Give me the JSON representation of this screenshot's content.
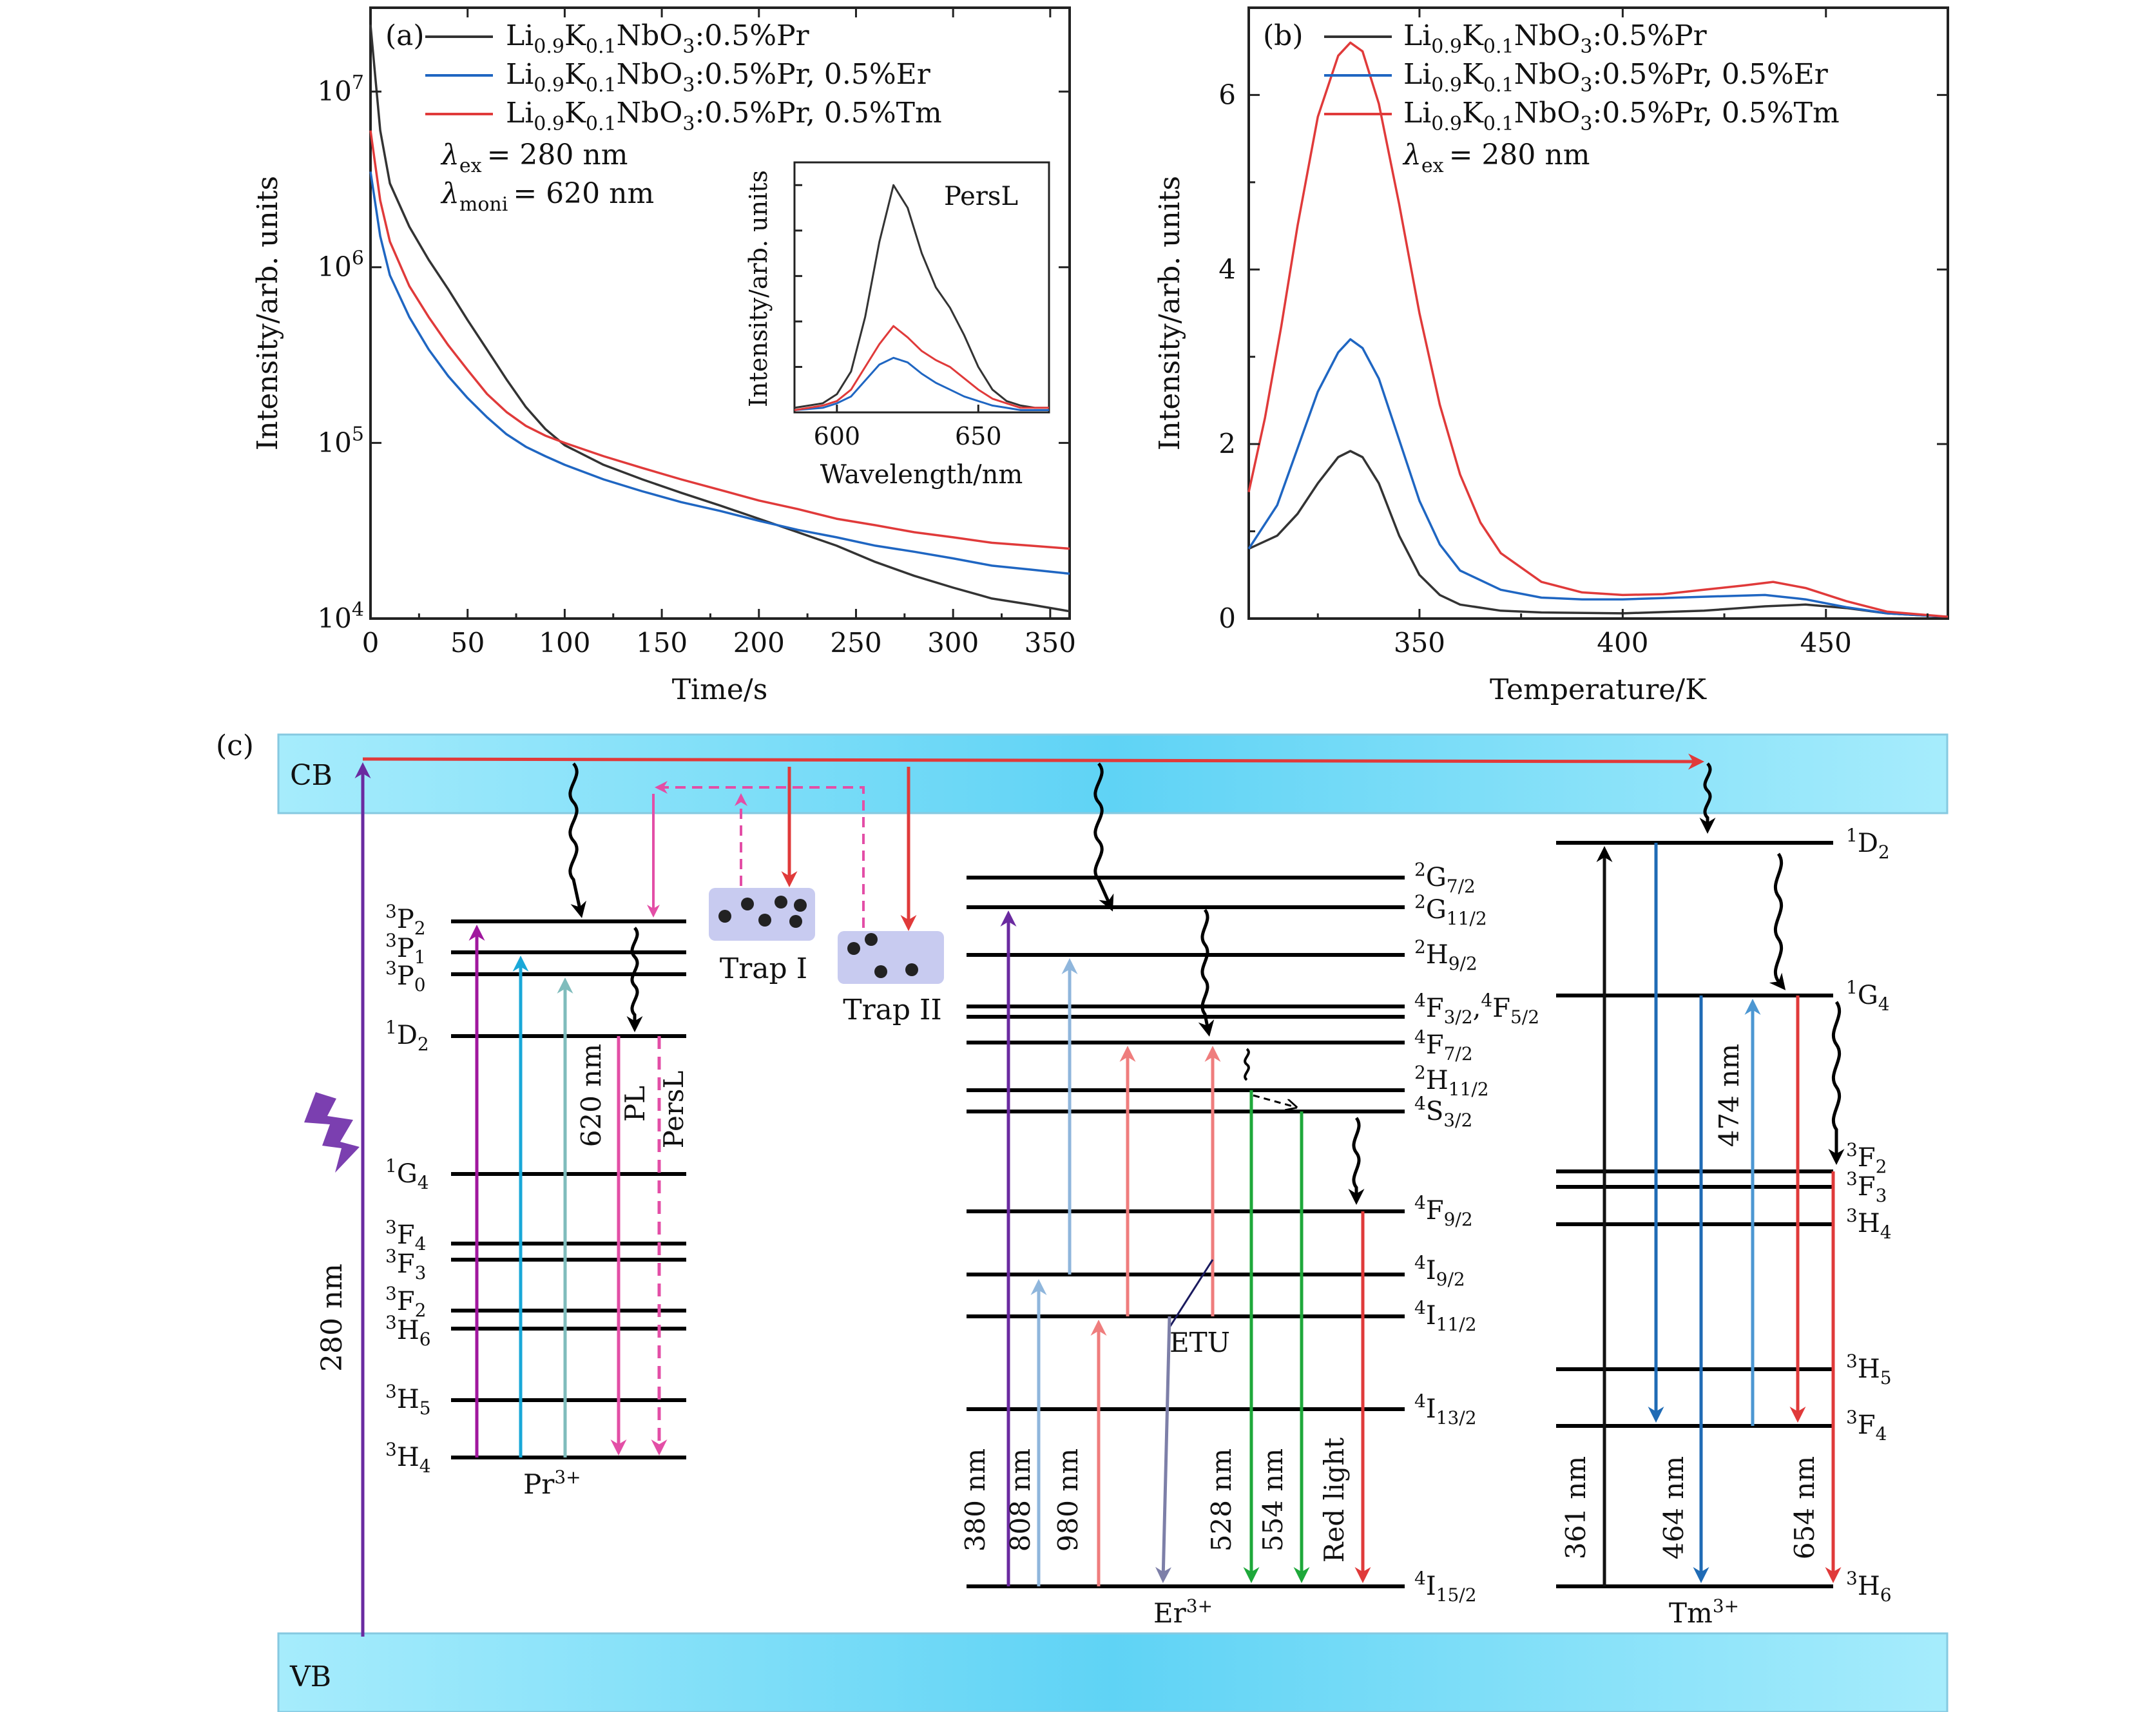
{
  "colors": {
    "black": "#333333",
    "blue": "#1f66c2",
    "red": "#e03a3a",
    "band": "#5fd3f5",
    "band_light": "#a6ecfc",
    "purple": "#6a2aa0",
    "magenta": "#a0179e",
    "cyan": "#19a8d8",
    "teal": "#7fbcbc",
    "pink": "#e34ea6",
    "green": "#1ea83a",
    "lightblue": "#8fb6dc",
    "salmon": "#ef7d7d",
    "trap": "#c8cbf0",
    "navy": "#1a1a5e",
    "grayblue": "#7d7fa8",
    "tm_blue": "#1f6bb5",
    "tm_lightblue": "#4c97d2"
  },
  "chart_data": [
    {
      "id": "a",
      "panel_label": "(a)",
      "type": "line",
      "y_scale": "log",
      "xlabel": "Time/s",
      "ylabel": "Intensity/arb. units",
      "xlim": [
        0,
        360
      ],
      "ylim": [
        10000,
        30000000
      ],
      "x_ticks": [
        "0",
        "50",
        "100",
        "150",
        "200",
        "250",
        "300",
        "350"
      ],
      "y_ticks": [
        {
          "base": "10",
          "exp": "4"
        },
        {
          "base": "10",
          "exp": "5"
        },
        {
          "base": "10",
          "exp": "6"
        },
        {
          "base": "10",
          "exp": "7"
        }
      ],
      "legend": [
        {
          "name_main": "Li",
          "sub1": "0.9",
          "k": "K",
          "sub2": "0.1",
          "nbo": "NbO",
          "sub3": "3",
          "rest": ":0.5%Pr"
        },
        {
          "name_main": "Li",
          "sub1": "0.9",
          "k": "K",
          "sub2": "0.1",
          "nbo": "NbO",
          "sub3": "3",
          "rest": ":0.5%Pr, 0.5%Er"
        },
        {
          "name_main": "Li",
          "sub1": "0.9",
          "k": "K",
          "sub2": "0.1",
          "nbo": "NbO",
          "sub3": "3",
          "rest": ":0.5%Pr, 0.5%Tm"
        }
      ],
      "annotations": {
        "lambda_ex_sub": "ex",
        "lambda_ex_value": "= 280 nm",
        "lambda_moni_sub": "moni",
        "lambda_moni_value": "= 620 nm"
      },
      "series": [
        {
          "name": "Li0.9K0.1NbO3:0.5%Pr",
          "color_key": "black",
          "x": [
            0,
            5,
            10,
            20,
            30,
            40,
            50,
            60,
            70,
            80,
            90,
            100,
            120,
            140,
            160,
            180,
            200,
            220,
            240,
            260,
            280,
            300,
            320,
            340,
            360
          ],
          "y": [
            24000000,
            6000000,
            3000000,
            1700000,
            1100000,
            750000,
            500000,
            340000,
            230000,
            160000,
            120000,
            97000,
            75000,
            62000,
            52000,
            44000,
            37000,
            31000,
            26000,
            21000,
            17500,
            15000,
            13000,
            12000,
            11000
          ]
        },
        {
          "name": "Li0.9K0.1NbO3:0.5%Pr, 0.5%Er",
          "color_key": "blue",
          "x": [
            0,
            5,
            10,
            20,
            30,
            40,
            50,
            60,
            70,
            80,
            90,
            100,
            120,
            140,
            160,
            180,
            200,
            220,
            240,
            260,
            280,
            300,
            320,
            340,
            360
          ],
          "y": [
            3500000,
            1500000,
            900000,
            520000,
            340000,
            240000,
            180000,
            140000,
            112000,
            95000,
            84000,
            75000,
            62000,
            53000,
            46000,
            41000,
            36000,
            32000,
            29000,
            26000,
            24000,
            22000,
            20000,
            19000,
            18000
          ]
        },
        {
          "name": "Li0.9K0.1NbO3:0.5%Pr, 0.5%Tm",
          "color_key": "red",
          "x": [
            0,
            5,
            10,
            20,
            30,
            40,
            50,
            60,
            70,
            80,
            90,
            100,
            120,
            140,
            160,
            180,
            200,
            220,
            240,
            260,
            280,
            300,
            320,
            340,
            360
          ],
          "y": [
            6000000,
            2400000,
            1400000,
            780000,
            520000,
            360000,
            260000,
            190000,
            150000,
            125000,
            110000,
            100000,
            84000,
            72000,
            62000,
            54000,
            47000,
            42000,
            37000,
            34000,
            31000,
            29000,
            27000,
            26000,
            25000
          ]
        }
      ]
    },
    {
      "id": "a-inset",
      "type": "line",
      "title": "PersL",
      "xlabel": "Wavelength/nm",
      "ylabel": "Intensity/arb. units",
      "xlim": [
        585,
        675
      ],
      "ylim": [
        0,
        1.1
      ],
      "x_ticks": [
        "600",
        "650"
      ],
      "series": [
        {
          "name": "Li0.9K0.1NbO3:0.5%Pr",
          "color_key": "black",
          "x": [
            585,
            595,
            600,
            605,
            610,
            615,
            620,
            625,
            630,
            635,
            640,
            645,
            650,
            655,
            660,
            665,
            670,
            675
          ],
          "y": [
            0.02,
            0.04,
            0.08,
            0.18,
            0.42,
            0.75,
            1.0,
            0.9,
            0.7,
            0.55,
            0.46,
            0.34,
            0.2,
            0.1,
            0.05,
            0.03,
            0.02,
            0.02
          ]
        },
        {
          "name": "Li0.9K0.1NbO3:0.5%Pr, 0.5%Er",
          "color_key": "blue",
          "x": [
            585,
            595,
            600,
            605,
            610,
            615,
            620,
            625,
            630,
            635,
            640,
            645,
            650,
            655,
            660,
            665,
            670,
            675
          ],
          "y": [
            0.01,
            0.02,
            0.04,
            0.07,
            0.14,
            0.21,
            0.24,
            0.22,
            0.17,
            0.13,
            0.1,
            0.07,
            0.05,
            0.03,
            0.02,
            0.01,
            0.01,
            0.01
          ]
        },
        {
          "name": "Li0.9K0.1NbO3:0.5%Pr, 0.5%Tm",
          "color_key": "red",
          "x": [
            585,
            595,
            600,
            605,
            610,
            615,
            620,
            625,
            630,
            635,
            640,
            645,
            650,
            655,
            660,
            665,
            670,
            675
          ],
          "y": [
            0.01,
            0.03,
            0.05,
            0.1,
            0.2,
            0.3,
            0.38,
            0.33,
            0.27,
            0.23,
            0.2,
            0.15,
            0.1,
            0.06,
            0.04,
            0.02,
            0.02,
            0.02
          ]
        }
      ]
    },
    {
      "id": "b",
      "panel_label": "(b)",
      "type": "line",
      "xlabel": "Temperature/K",
      "ylabel": "Intensity/arb. units",
      "xlim": [
        308,
        480
      ],
      "ylim": [
        0,
        7
      ],
      "x_ticks": [
        "350",
        "400",
        "450"
      ],
      "y_ticks": [
        "0",
        "2",
        "4",
        "6"
      ],
      "legend": [
        {
          "name_main": "Li",
          "sub1": "0.9",
          "k": "K",
          "sub2": "0.1",
          "nbo": "NbO",
          "sub3": "3",
          "rest": ":0.5%Pr"
        },
        {
          "name_main": "Li",
          "sub1": "0.9",
          "k": "K",
          "sub2": "0.1",
          "nbo": "NbO",
          "sub3": "3",
          "rest": ":0.5%Pr, 0.5%Er"
        },
        {
          "name_main": "Li",
          "sub1": "0.9",
          "k": "K",
          "sub2": "0.1",
          "nbo": "NbO",
          "sub3": "3",
          "rest": ":0.5%Pr, 0.5%Tm"
        }
      ],
      "annotations": {
        "lambda_ex_sub": "ex",
        "lambda_ex_value": "= 280 nm"
      },
      "series": [
        {
          "name": "Li0.9K0.1NbO3:0.5%Pr",
          "color_key": "black",
          "x": [
            308,
            315,
            320,
            325,
            330,
            333,
            336,
            340,
            345,
            350,
            355,
            360,
            370,
            380,
            400,
            420,
            435,
            445,
            455,
            465,
            480
          ],
          "y": [
            0.8,
            0.95,
            1.2,
            1.55,
            1.85,
            1.92,
            1.85,
            1.55,
            0.95,
            0.5,
            0.27,
            0.16,
            0.09,
            0.07,
            0.06,
            0.09,
            0.14,
            0.16,
            0.12,
            0.06,
            0.02
          ]
        },
        {
          "name": "Li0.9K0.1NbO3:0.5%Pr, 0.5%Er",
          "color_key": "blue",
          "x": [
            308,
            315,
            320,
            325,
            330,
            333,
            336,
            340,
            345,
            350,
            355,
            360,
            370,
            380,
            390,
            400,
            420,
            435,
            445,
            455,
            465,
            480
          ],
          "y": [
            0.8,
            1.3,
            1.95,
            2.6,
            3.05,
            3.2,
            3.1,
            2.75,
            2.05,
            1.35,
            0.85,
            0.55,
            0.33,
            0.24,
            0.22,
            0.22,
            0.25,
            0.27,
            0.22,
            0.13,
            0.06,
            0.02
          ]
        },
        {
          "name": "Li0.9K0.1NbO3:0.5%Pr, 0.5%Tm",
          "color_key": "red",
          "x": [
            308,
            312,
            316,
            320,
            325,
            330,
            333,
            336,
            340,
            345,
            350,
            355,
            360,
            365,
            370,
            380,
            390,
            400,
            410,
            420,
            430,
            437,
            445,
            455,
            465,
            480
          ],
          "y": [
            1.45,
            2.3,
            3.35,
            4.5,
            5.75,
            6.45,
            6.6,
            6.5,
            5.9,
            4.75,
            3.5,
            2.45,
            1.65,
            1.1,
            0.75,
            0.42,
            0.3,
            0.27,
            0.28,
            0.33,
            0.38,
            0.42,
            0.35,
            0.2,
            0.08,
            0.02
          ]
        }
      ]
    }
  ],
  "diagram": {
    "panel_label": "(c)",
    "cb_label": "CB",
    "vb_label": "VB",
    "excitation_label": "280 nm",
    "pr": {
      "ion_base": "Pr",
      "ion_sup": "3+",
      "levels": [
        {
          "sup": "3",
          "base": "P",
          "sub": "2"
        },
        {
          "sup": "3",
          "base": "P",
          "sub": "1"
        },
        {
          "sup": "3",
          "base": "P",
          "sub": "0"
        },
        {
          "sup": "1",
          "base": "D",
          "sub": "2"
        },
        {
          "sup": "1",
          "base": "G",
          "sub": "4"
        },
        {
          "sup": "3",
          "base": "F",
          "sub": "4"
        },
        {
          "sup": "3",
          "base": "F",
          "sub": "3"
        },
        {
          "sup": "3",
          "base": "F",
          "sub": "2"
        },
        {
          "sup": "3",
          "base": "H",
          "sub": "6"
        },
        {
          "sup": "3",
          "base": "H",
          "sub": "5"
        },
        {
          "sup": "3",
          "base": "H",
          "sub": "4"
        }
      ],
      "labels": {
        "nm620": "620 nm",
        "pl": "PL",
        "persl": "PersL"
      }
    },
    "traps": {
      "trap1": "Trap I",
      "trap2": "Trap II"
    },
    "er": {
      "ion_base": "Er",
      "ion_sup": "3+",
      "levels": [
        {
          "sup": "2",
          "base": "G",
          "sub": "7/2"
        },
        {
          "sup": "2",
          "base": "G",
          "sub": "11/2"
        },
        {
          "sup": "2",
          "base": "H",
          "sub": "9/2"
        },
        {
          "sup": "4",
          "base": "F",
          "sub": "3/2",
          "extra_sup": "4",
          "extra_base": "F",
          "extra_sub": "5/2"
        },
        {
          "sup": "4",
          "base": "F",
          "sub": "7/2"
        },
        {
          "sup": "2",
          "base": "H",
          "sub": "11/2"
        },
        {
          "sup": "4",
          "base": "S",
          "sub": "3/2"
        },
        {
          "sup": "4",
          "base": "F",
          "sub": "9/2"
        },
        {
          "sup": "4",
          "base": "I",
          "sub": "9/2"
        },
        {
          "sup": "4",
          "base": "I",
          "sub": "11/2"
        },
        {
          "sup": "4",
          "base": "I",
          "sub": "13/2"
        },
        {
          "sup": "4",
          "base": "I",
          "sub": "15/2"
        }
      ],
      "labels": {
        "nm380": "380 nm",
        "nm808": "808 nm",
        "nm980": "980 nm",
        "nm528": "528 nm",
        "nm554": "554 nm",
        "red": "Red light",
        "etu": "ETU"
      }
    },
    "tm": {
      "ion_base": "Tm",
      "ion_sup": "3+",
      "levels": [
        {
          "sup": "1",
          "base": "D",
          "sub": "2"
        },
        {
          "sup": "1",
          "base": "G",
          "sub": "4"
        },
        {
          "sup": "3",
          "base": "F",
          "sub": "2"
        },
        {
          "sup": "3",
          "base": "F",
          "sub": "3"
        },
        {
          "sup": "3",
          "base": "H",
          "sub": "4"
        },
        {
          "sup": "3",
          "base": "H",
          "sub": "5"
        },
        {
          "sup": "3",
          "base": "F",
          "sub": "4"
        },
        {
          "sup": "3",
          "base": "H",
          "sub": "6"
        }
      ],
      "labels": {
        "nm474": "474 nm",
        "nm361": "361 nm",
        "nm464": "464 nm",
        "nm654": "654 nm"
      }
    }
  }
}
